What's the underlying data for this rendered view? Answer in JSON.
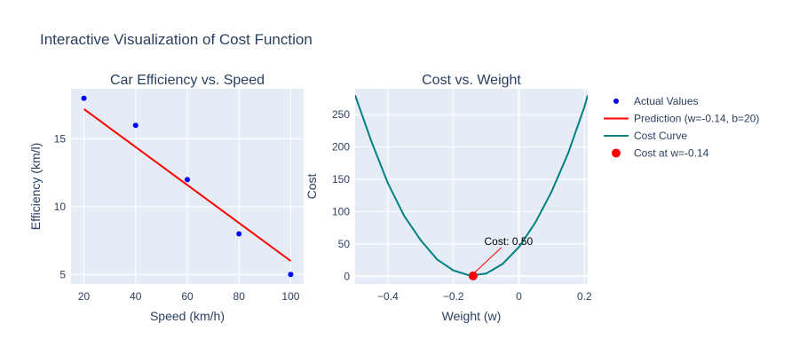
{
  "figure_title": "Interactive Visualization of Cost Function",
  "colors": {
    "plot_bg": "#E5ECF6",
    "grid": "#ffffff",
    "text": "#2a3f5f",
    "actual": "#0000ff",
    "prediction": "#ff0000",
    "cost_curve": "#008080",
    "cost_point": "#ff0000"
  },
  "legend": {
    "placement": "right",
    "items": [
      {
        "label": "Actual Values",
        "symbol": "marker",
        "color": "#0000ff"
      },
      {
        "label": "Prediction (w=-0.14, b=20)",
        "symbol": "line",
        "color": "#ff0000"
      },
      {
        "label": "Cost Curve",
        "symbol": "line",
        "color": "#008080"
      },
      {
        "label": "Cost at w=-0.14",
        "symbol": "marker",
        "color": "#ff0000"
      }
    ]
  },
  "chart_data": [
    {
      "type": "scatter",
      "title": "Car Efficiency vs. Speed",
      "xlabel": "Speed (km/h)",
      "ylabel": "Efficiency (km/l)",
      "xlim": [
        15,
        105
      ],
      "ylim": [
        4.3,
        18.7
      ],
      "xticks": [
        20,
        40,
        60,
        80,
        100
      ],
      "yticks": [
        5,
        10,
        15
      ],
      "grid": true,
      "series": [
        {
          "name": "Actual Values",
          "mode": "markers",
          "color": "#0000ff",
          "x": [
            20,
            40,
            60,
            80,
            100
          ],
          "y": [
            18,
            16,
            12,
            8,
            5
          ]
        },
        {
          "name": "Prediction (w=-0.14, b=20)",
          "mode": "line",
          "color": "#ff0000",
          "x": [
            20,
            100
          ],
          "y": [
            17.2,
            6
          ]
        }
      ]
    },
    {
      "type": "line",
      "title": "Cost vs. Weight",
      "xlabel": "Weight (w)",
      "ylabel": "Cost",
      "xlim": [
        -0.5,
        0.21
      ],
      "ylim": [
        -12,
        290
      ],
      "xticks": [
        -0.4,
        -0.2,
        0,
        0.2
      ],
      "xtick_labels": [
        "−0.4",
        "−0.2",
        "0",
        "0.2"
      ],
      "yticks": [
        0,
        50,
        100,
        150,
        200,
        250
      ],
      "grid": true,
      "series": [
        {
          "name": "Cost Curve",
          "mode": "line",
          "color": "#008080",
          "x": [
            -0.5,
            -0.45,
            -0.4,
            -0.35,
            -0.3,
            -0.25,
            -0.2,
            -0.15,
            -0.1,
            -0.05,
            0,
            0.05,
            0.1,
            0.15,
            0.2,
            0.21
          ],
          "y": [
            280,
            208,
            144,
            93,
            56,
            26,
            9,
            1,
            4,
            19,
            45,
            83,
            131,
            190,
            262,
            280
          ]
        },
        {
          "name": "Cost at w=-0.14",
          "mode": "markers",
          "color": "#ff0000",
          "x": [
            -0.14
          ],
          "y": [
            0.5
          ]
        }
      ],
      "annotations": [
        {
          "text": "Cost: 0.50",
          "x": -0.14,
          "y": 0.5
        }
      ]
    }
  ]
}
